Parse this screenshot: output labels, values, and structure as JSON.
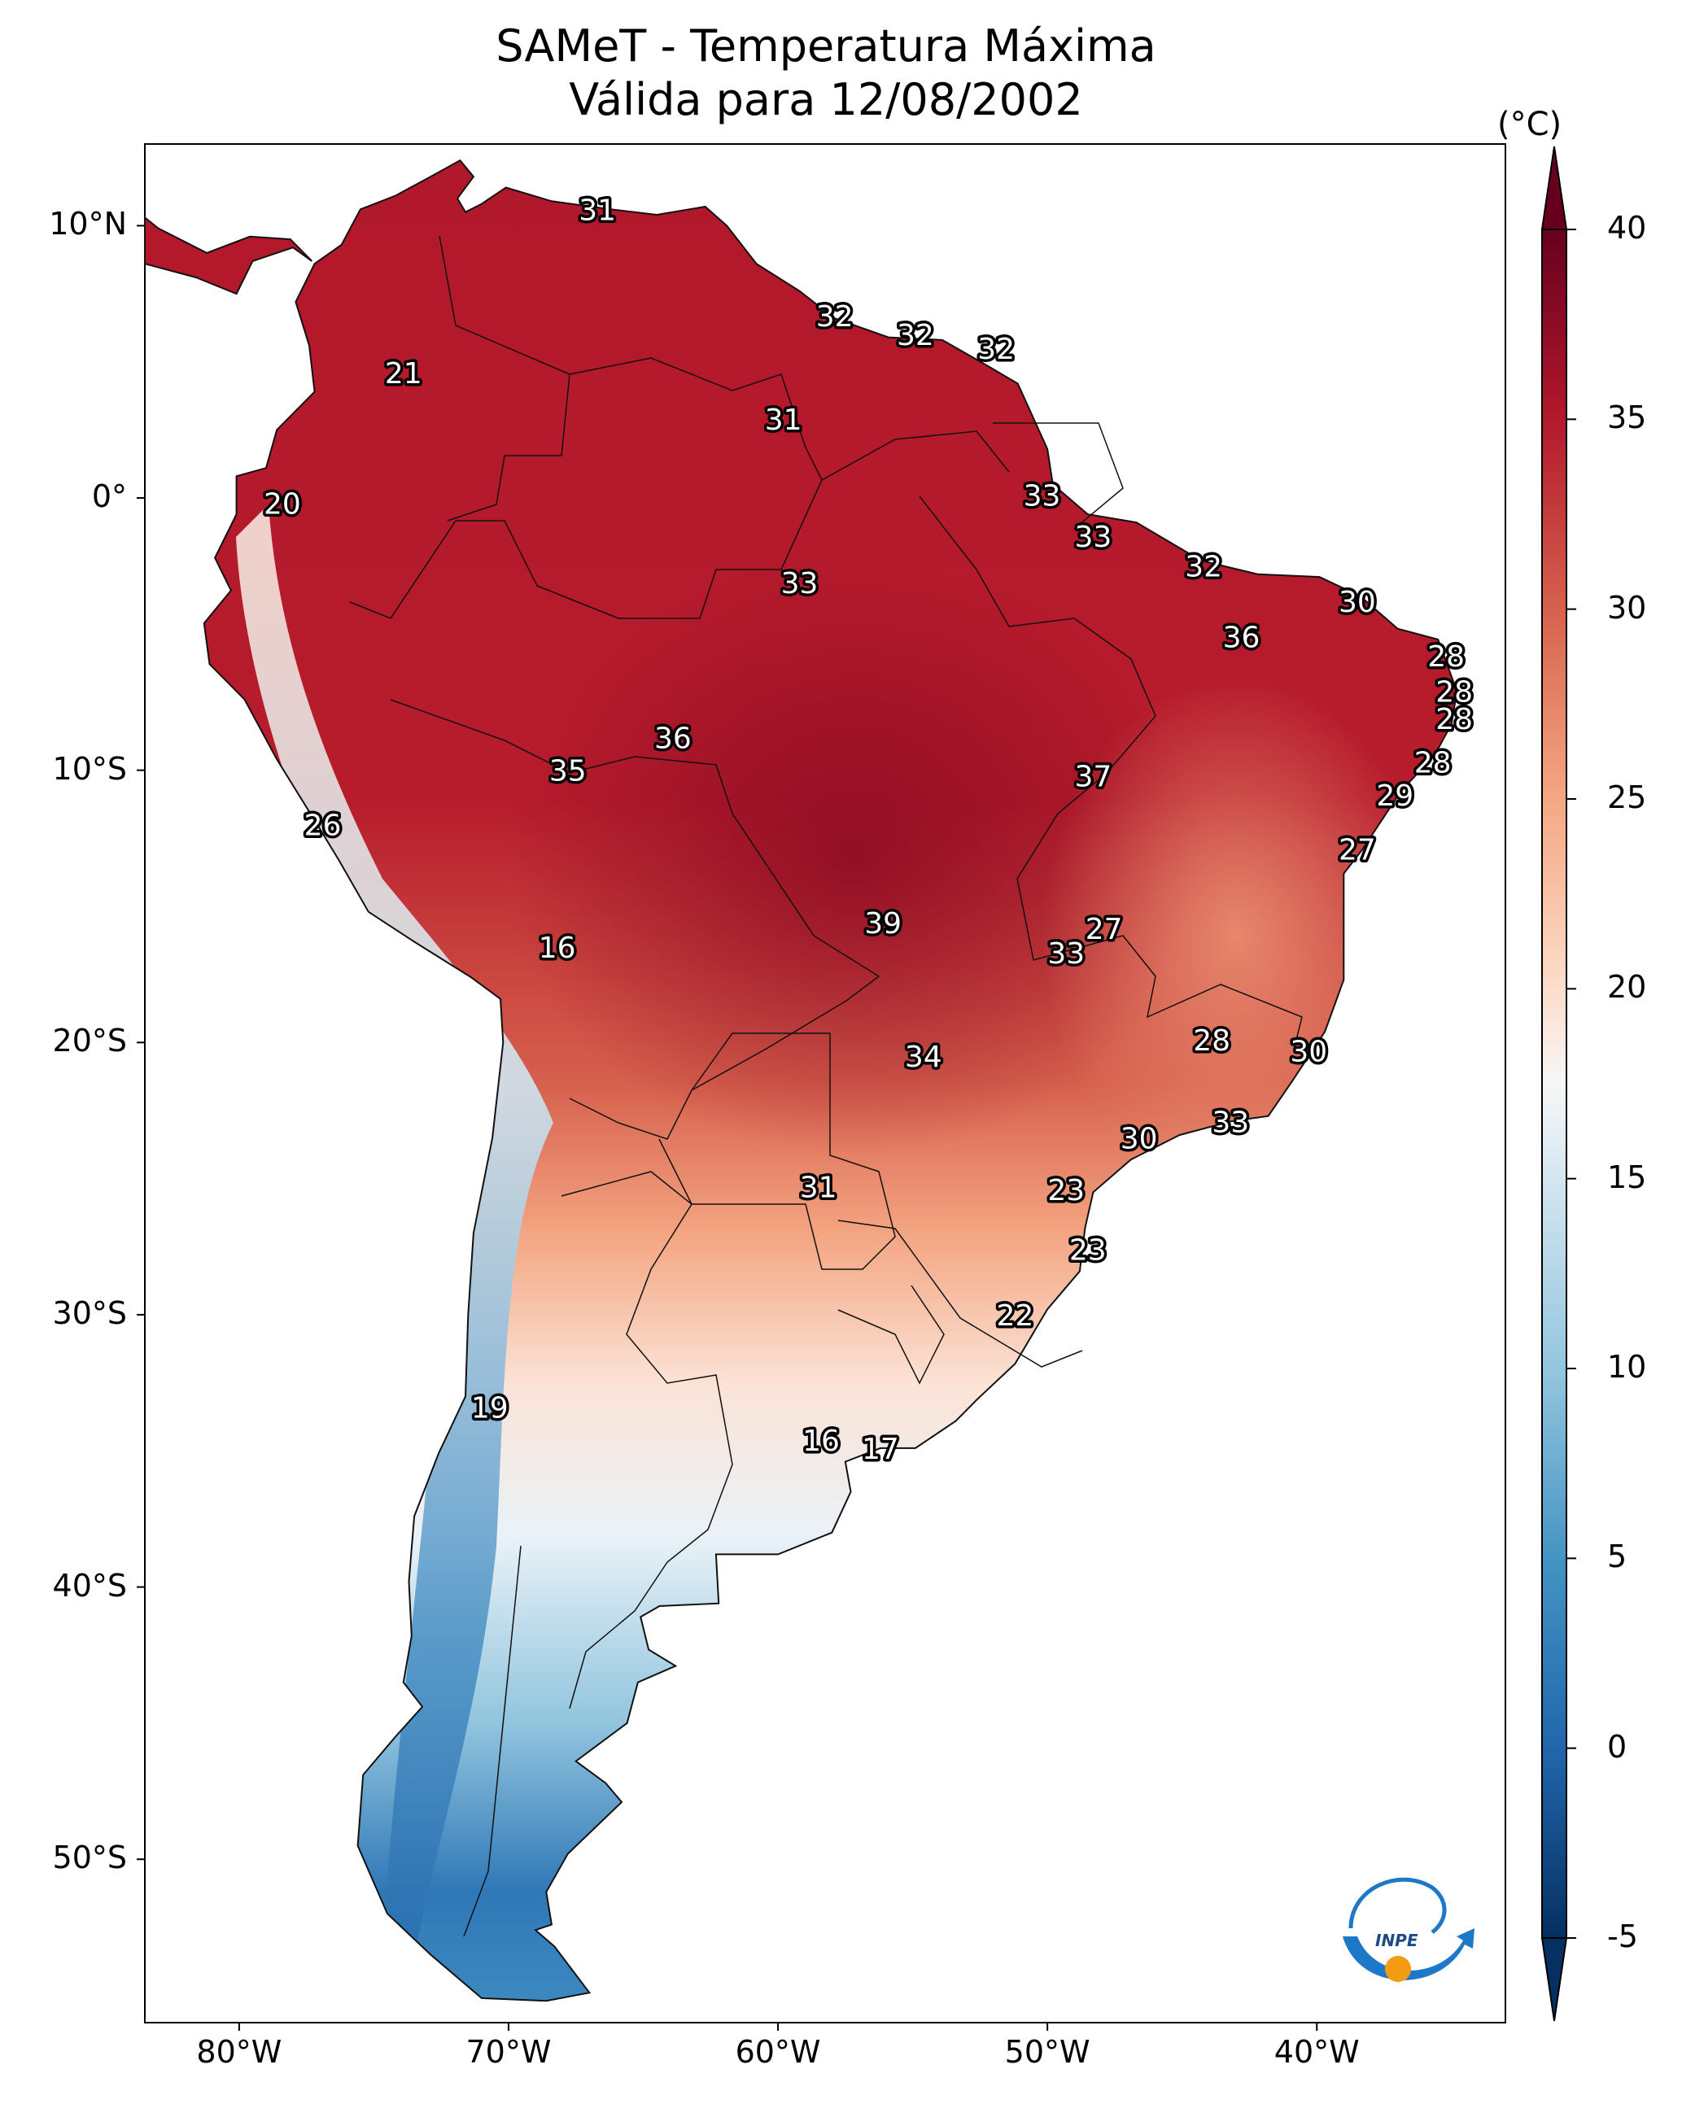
{
  "title": {
    "line1": "SAMeT - Temperatura Máxima",
    "line2": "Válida para 12/08/2002"
  },
  "map": {
    "projection": "PlateCarree",
    "extent": {
      "lon_min": -83.5,
      "lon_max": -33,
      "lat_min": -56,
      "lat_max": 13
    },
    "lat_ticks": [
      {
        "value": 10,
        "label": "10°N"
      },
      {
        "value": 0,
        "label": "0°"
      },
      {
        "value": -10,
        "label": "10°S"
      },
      {
        "value": -20,
        "label": "20°S"
      },
      {
        "value": -30,
        "label": "30°S"
      },
      {
        "value": -40,
        "label": "40°S"
      },
      {
        "value": -50,
        "label": "50°S"
      }
    ],
    "lon_ticks": [
      {
        "value": -80,
        "label": "80°W"
      },
      {
        "value": -70,
        "label": "70°W"
      },
      {
        "value": -60,
        "label": "60°W"
      },
      {
        "value": -50,
        "label": "50°W"
      },
      {
        "value": -40,
        "label": "40°W"
      }
    ],
    "station_labels": [
      {
        "text": "31",
        "lon": -66.7,
        "lat": 10.6
      },
      {
        "text": "32",
        "lon": -57.9,
        "lat": 6.7
      },
      {
        "text": "32",
        "lon": -54.9,
        "lat": 6.0
      },
      {
        "text": "32",
        "lon": -51.9,
        "lat": 5.5
      },
      {
        "text": "21",
        "lon": -73.9,
        "lat": 4.6
      },
      {
        "text": "31",
        "lon": -59.8,
        "lat": 2.9
      },
      {
        "text": "20",
        "lon": -78.4,
        "lat": -0.2
      },
      {
        "text": "33",
        "lon": -50.2,
        "lat": 0.1
      },
      {
        "text": "33",
        "lon": -48.3,
        "lat": -1.4
      },
      {
        "text": "32",
        "lon": -44.2,
        "lat": -2.5
      },
      {
        "text": "33",
        "lon": -59.2,
        "lat": -3.1
      },
      {
        "text": "30",
        "lon": -38.5,
        "lat": -3.8
      },
      {
        "text": "36",
        "lon": -42.8,
        "lat": -5.1
      },
      {
        "text": "28",
        "lon": -35.2,
        "lat": -5.8
      },
      {
        "text": "28",
        "lon": -34.9,
        "lat": -7.1
      },
      {
        "text": "28",
        "lon": -34.9,
        "lat": -8.1
      },
      {
        "text": "36",
        "lon": -63.9,
        "lat": -8.8
      },
      {
        "text": "28",
        "lon": -35.7,
        "lat": -9.7
      },
      {
        "text": "35",
        "lon": -67.8,
        "lat": -10.0
      },
      {
        "text": "37",
        "lon": -48.3,
        "lat": -10.2
      },
      {
        "text": "29",
        "lon": -37.1,
        "lat": -10.9
      },
      {
        "text": "26",
        "lon": -76.9,
        "lat": -12.0
      },
      {
        "text": "27",
        "lon": -38.5,
        "lat": -12.9
      },
      {
        "text": "39",
        "lon": -56.1,
        "lat": -15.6
      },
      {
        "text": "27",
        "lon": -47.9,
        "lat": -15.8
      },
      {
        "text": "16",
        "lon": -68.2,
        "lat": -16.5
      },
      {
        "text": "33",
        "lon": -49.3,
        "lat": -16.7
      },
      {
        "text": "28",
        "lon": -43.9,
        "lat": -19.9
      },
      {
        "text": "30",
        "lon": -40.3,
        "lat": -20.3
      },
      {
        "text": "34",
        "lon": -54.6,
        "lat": -20.5
      },
      {
        "text": "33",
        "lon": -43.2,
        "lat": -22.9
      },
      {
        "text": "30",
        "lon": -46.6,
        "lat": -23.5
      },
      {
        "text": "31",
        "lon": -58.5,
        "lat": -25.3
      },
      {
        "text": "23",
        "lon": -49.3,
        "lat": -25.4
      },
      {
        "text": "23",
        "lon": -48.5,
        "lat": -27.6
      },
      {
        "text": "22",
        "lon": -51.2,
        "lat": -30.0
      },
      {
        "text": "19",
        "lon": -70.7,
        "lat": -33.4
      },
      {
        "text": "16",
        "lon": -58.4,
        "lat": -34.6
      },
      {
        "text": "17",
        "lon": -56.2,
        "lat": -34.9
      }
    ]
  },
  "colorbar": {
    "unit": "(°C)",
    "min": -5,
    "max": 40,
    "extend": "both",
    "colormap": "RdBu_r",
    "ticks": [
      {
        "value": 40,
        "label": "40"
      },
      {
        "value": 35,
        "label": "35"
      },
      {
        "value": 30,
        "label": "30"
      },
      {
        "value": 25,
        "label": "25"
      },
      {
        "value": 20,
        "label": "20"
      },
      {
        "value": 15,
        "label": "15"
      },
      {
        "value": 10,
        "label": "10"
      },
      {
        "value": 5,
        "label": "5"
      },
      {
        "value": 0,
        "label": "0"
      },
      {
        "value": -5,
        "label": "-5"
      }
    ]
  },
  "logo": {
    "text": "INPE",
    "colors": {
      "blue": "#1e78c8",
      "orange": "#f39c12"
    }
  }
}
